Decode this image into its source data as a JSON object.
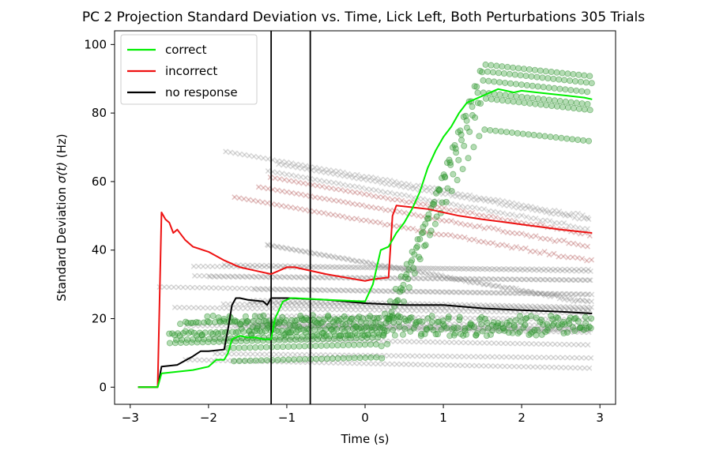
{
  "chart_data": {
    "type": "scatter",
    "title": "PC 2 Projection Standard Deviation vs. Time, Lick Left, Both Perturbations 305 Trials",
    "xlabel": "Time (s)",
    "ylabel_prefix": "Standard Deviation ",
    "ylabel_symbol": "σ(t)",
    "ylabel_suffix": " (Hz)",
    "xlim": [
      -3.2,
      3.2
    ],
    "ylim": [
      -5,
      104
    ],
    "xticks": [
      -3,
      -2,
      -1,
      0,
      1,
      2,
      3
    ],
    "yticks": [
      0,
      20,
      40,
      60,
      80,
      100
    ],
    "xtick_labels": [
      "−3",
      "−2",
      "−1",
      "0",
      "1",
      "2",
      "3"
    ],
    "ytick_labels": [
      "0",
      "20",
      "40",
      "60",
      "80",
      "100"
    ],
    "grid": false,
    "legend_position": "top-left",
    "vlines": [
      -1.2,
      -0.7
    ],
    "series": [
      {
        "name": "correct",
        "color": "#00ee00",
        "x": [
          -2.9,
          -2.7,
          -2.65,
          -2.6,
          -2.4,
          -2.2,
          -2.0,
          -1.9,
          -1.8,
          -1.75,
          -1.7,
          -1.6,
          -1.5,
          -1.4,
          -1.3,
          -1.2,
          -1.15,
          -1.05,
          -0.95,
          -0.9,
          -0.5,
          0.0,
          0.1,
          0.2,
          0.3,
          0.4,
          0.5,
          0.6,
          0.7,
          0.8,
          0.9,
          1.0,
          1.1,
          1.2,
          1.3,
          1.4,
          1.5,
          1.6,
          1.7,
          1.8,
          1.9,
          2.0,
          2.2,
          2.4,
          2.6,
          2.8,
          2.9
        ],
        "y": [
          0,
          0,
          0,
          4,
          4.5,
          5,
          6,
          8,
          8,
          10,
          14,
          15,
          14.5,
          14.5,
          14,
          14,
          20,
          25,
          26,
          26,
          25.5,
          25,
          30,
          40,
          41,
          45,
          48,
          52,
          57,
          64,
          69,
          73,
          76,
          80,
          83,
          84,
          85,
          86,
          87,
          86.5,
          86,
          86.5,
          86,
          85.5,
          85,
          84.5,
          84
        ]
      },
      {
        "name": "incorrect",
        "color": "#ee1111",
        "x": [
          -2.9,
          -2.7,
          -2.65,
          -2.6,
          -2.55,
          -2.5,
          -2.45,
          -2.4,
          -2.3,
          -2.2,
          -2.0,
          -1.8,
          -1.6,
          -1.4,
          -1.2,
          -1.1,
          -1.0,
          -0.9,
          -0.5,
          0.0,
          0.1,
          0.3,
          0.35,
          0.4,
          0.6,
          0.8,
          1.0,
          1.2,
          1.5,
          2.0,
          2.5,
          2.9
        ],
        "y": [
          0,
          0,
          0,
          51,
          49,
          48,
          45,
          46,
          43,
          41,
          39.5,
          37,
          35,
          34,
          33,
          34,
          35,
          35,
          33,
          31,
          31.5,
          32,
          50,
          53,
          52.5,
          52,
          51,
          50,
          49,
          47.5,
          46,
          45
        ]
      },
      {
        "name": "no response",
        "color": "#000000",
        "x": [
          -2.9,
          -2.7,
          -2.65,
          -2.6,
          -2.4,
          -2.2,
          -2.1,
          -2.0,
          -1.8,
          -1.75,
          -1.7,
          -1.65,
          -1.6,
          -1.5,
          -1.3,
          -1.25,
          -1.2,
          -1.1,
          -1.0,
          -0.5,
          0.0,
          0.5,
          0.8,
          1.0,
          1.5,
          2.0,
          2.5,
          2.9
        ],
        "y": [
          0,
          0,
          0,
          6,
          6.5,
          9,
          10.5,
          10.5,
          11,
          17,
          24,
          26,
          26,
          25.5,
          25,
          24,
          26,
          26,
          26,
          25.5,
          24.5,
          24,
          24,
          24,
          23,
          22.5,
          22,
          21.5
        ]
      }
    ]
  }
}
